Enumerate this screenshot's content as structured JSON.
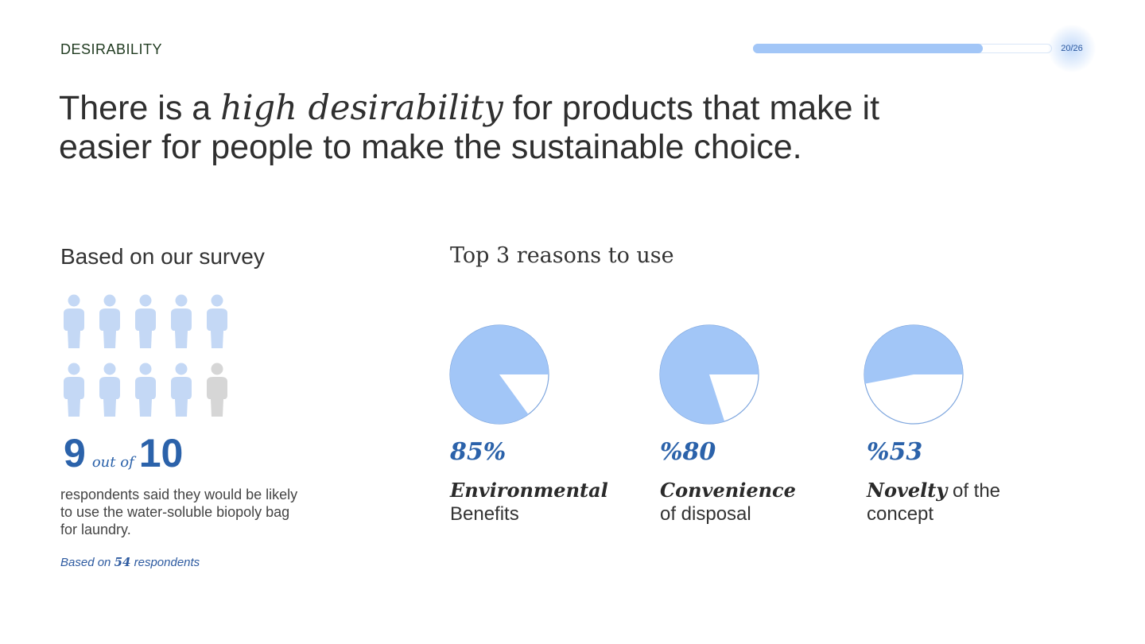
{
  "header": {
    "section": "DESIRABILITY",
    "page_indicator": "20/26",
    "progress_fraction": 0.7692
  },
  "headline": {
    "part1": "There is a ",
    "emphasis": "high desirability",
    "part2": " for products that make it easier for people to make the sustainable choice."
  },
  "survey": {
    "title": "Based on our survey",
    "positive": 9,
    "total": 10,
    "stat_number": "9",
    "stat_connector": "out of",
    "stat_total": "10",
    "description": "respondents said they would be likely to use the water-soluble biopoly bag for laundry.",
    "basis_prefix": "Based on",
    "basis_count": "54",
    "basis_suffix": "respondents"
  },
  "reasons": {
    "title": "Top 3 reasons to use"
  },
  "colors": {
    "accent": "#2b62aa",
    "pie_fill": "#a2c6f7",
    "pie_outline": "#7ea6de",
    "person_active": "#c4d8f5",
    "person_inactive": "#d6d6d6"
  },
  "chart_data": {
    "type": "pie",
    "title": "Top 3 reasons to use",
    "series": [
      {
        "name": "Environmental Benefits",
        "percent_label": "85%",
        "value": 85,
        "label_bold": "Environmental",
        "label_rest": "Benefits"
      },
      {
        "name": "Convenience of disposal",
        "percent_label": "%80",
        "value": 80,
        "label_bold": "Convenience",
        "label_rest": "of disposal"
      },
      {
        "name": "Novelty of the concept",
        "percent_label": "%53",
        "value": 53,
        "label_bold": "Novelty",
        "label_rest": "of the concept"
      }
    ]
  }
}
